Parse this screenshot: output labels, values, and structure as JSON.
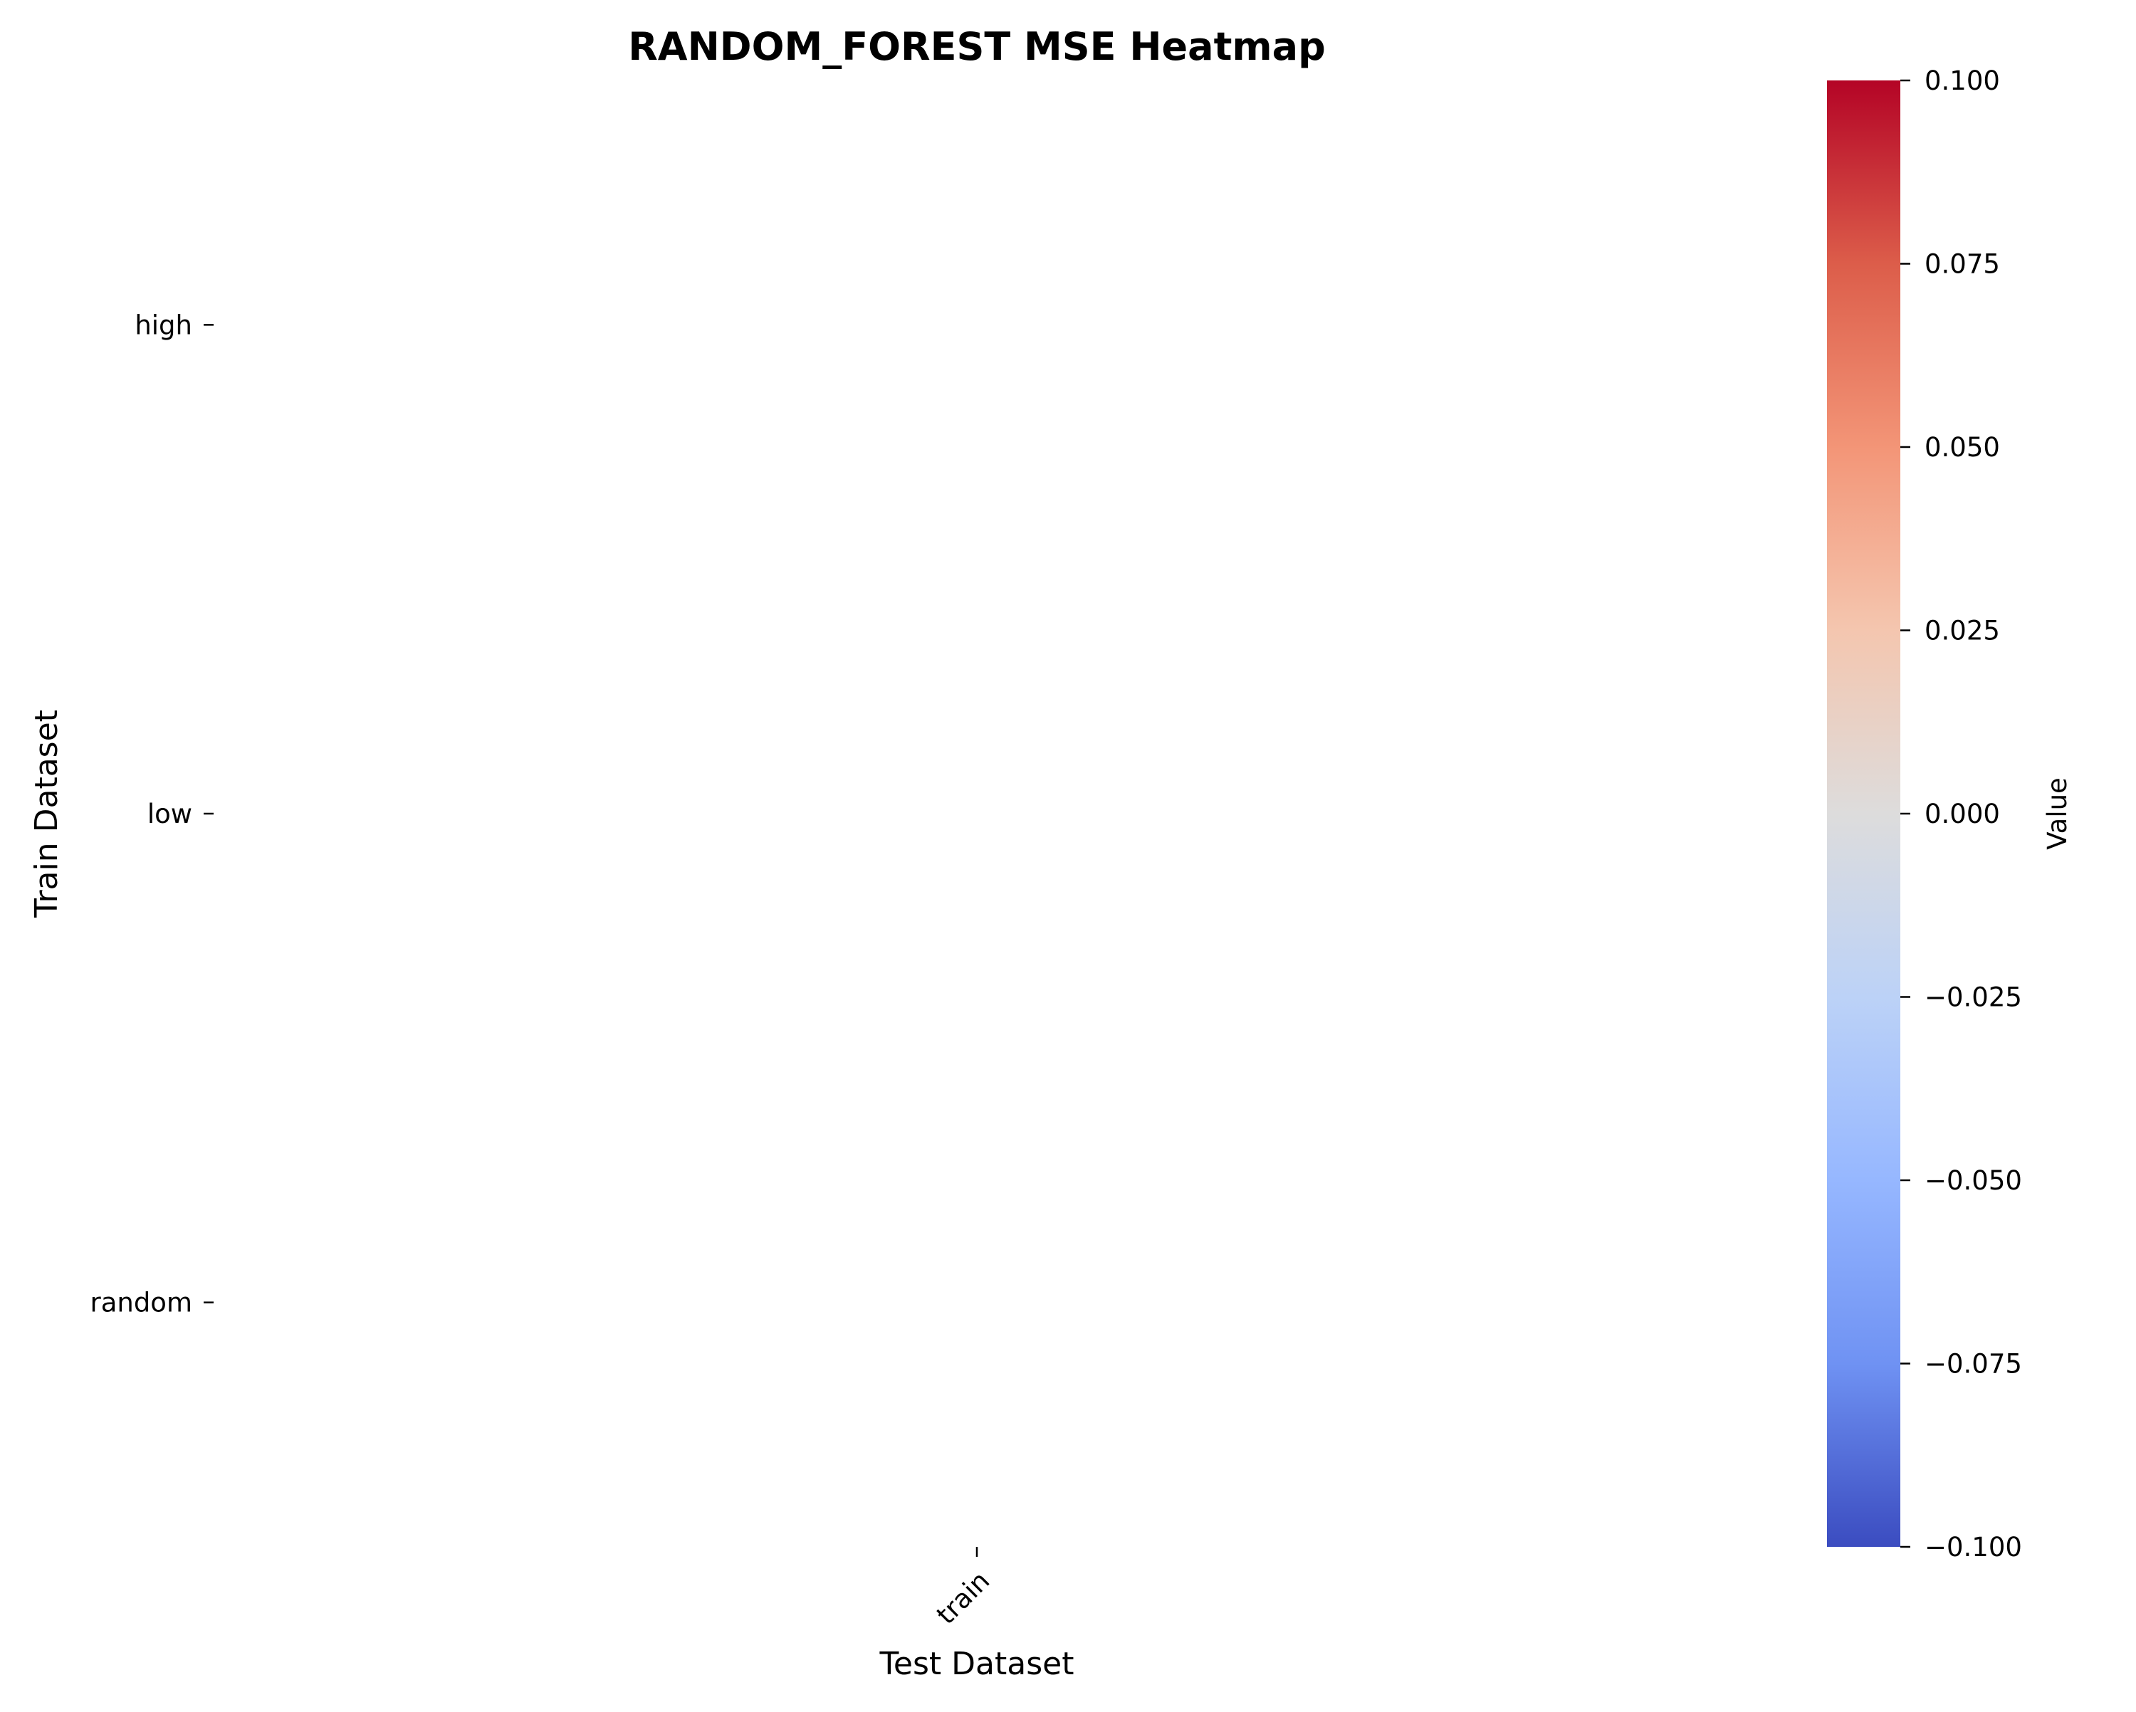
{
  "chart_data": {
    "type": "heatmap",
    "title": "RANDOM_FOREST MSE Heatmap",
    "xlabel": "Test Dataset",
    "ylabel": "Train Dataset",
    "x_categories": [
      "train"
    ],
    "y_categories": [
      "high",
      "low",
      "random"
    ],
    "values": [
      [
        null
      ],
      [
        null
      ],
      [
        null
      ]
    ],
    "colorbar": {
      "label": "Value",
      "colormap": "coolwarm",
      "vmin": -0.1,
      "vmax": 0.1,
      "ticks": [
        "0.100",
        "0.075",
        "0.050",
        "0.025",
        "0.000",
        "−0.025",
        "−0.050",
        "−0.075",
        "−0.100"
      ],
      "colors": [
        "#b40426",
        "#dc5d4a",
        "#f39577",
        "#f4c6af",
        "#dddcdc",
        "#bcd2f7",
        "#96b7ff",
        "#6f92f3",
        "#3b4cc0"
      ]
    }
  }
}
